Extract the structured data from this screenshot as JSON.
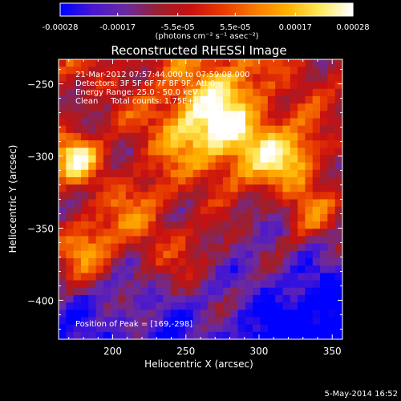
{
  "chart_data": {
    "type": "heatmap",
    "title": "Reconstructed RHESSI Image",
    "xlabel": "Heliocentric X (arcsec)",
    "ylabel": "Heliocentric Y (arcsec)",
    "xlim": [
      163,
      357
    ],
    "ylim": [
      -427,
      -233
    ],
    "x_ticks": [
      200,
      250,
      300,
      350
    ],
    "y_ticks": [
      -250,
      -300,
      -350,
      -400
    ],
    "colorbar": {
      "range": [
        -0.00028,
        0.00028
      ],
      "ticks": [
        "-0.00028",
        "-0.00017",
        "-5.5e-05",
        "5.5e-05",
        "0.00017",
        "0.00028"
      ],
      "unit_label": "(photons cm⁻² s⁻¹ asec⁻²)",
      "colormap": [
        "#0000ff",
        "#4a18cf",
        "#6b2aa0",
        "#9a2030",
        "#c81010",
        "#e83a00",
        "#f77a00",
        "#ffb000",
        "#ffe85a",
        "#ffffff"
      ]
    },
    "annotations": [
      "21-Mar-2012 07:57:44.000 to 07:59:08.000",
      "Detectors: 3F 5F 6F 7F 8F 9F, Att 0",
      "Energy Range: 25.0 - 50.0 keV",
      "Clean     Total counts: 1.75E+03"
    ],
    "peak_label": "Position of Peak = [169,-298]",
    "date_stamp": "5-May-2014 16:52",
    "grid": false,
    "pixel_grid": {
      "nx": 38,
      "ny": 38
    }
  }
}
